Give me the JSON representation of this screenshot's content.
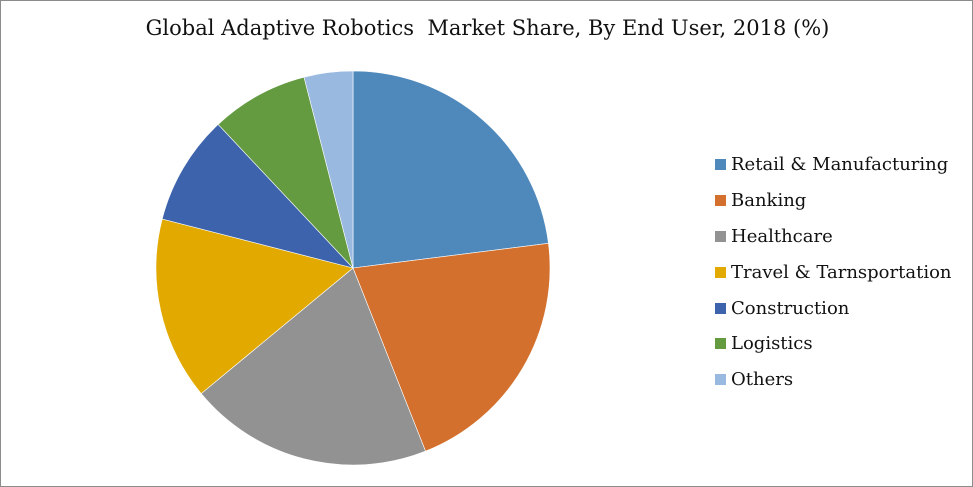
{
  "chart_data": {
    "type": "pie",
    "title": "Global Adaptive Robotics  Market Share, By End User, 2018 (%)",
    "categories": [
      "Retail & Manufacturing",
      "Banking",
      "Healthcare",
      "Travel & Tarnsportation",
      "Construction",
      "Logistics",
      "Others"
    ],
    "values": [
      23,
      21,
      20,
      15,
      9,
      8,
      4
    ],
    "colors": [
      "#4f89bc",
      "#d4702d",
      "#929292",
      "#e2aa00",
      "#3c63ac",
      "#649a40",
      "#99b9e0"
    ],
    "start_angle_deg": 0,
    "direction": "clockwise",
    "legend_position": "right",
    "data_labels": false
  },
  "legend": {
    "items": [
      {
        "label": "Retail & Manufacturing",
        "color": "#4f89bc"
      },
      {
        "label": "Banking",
        "color": "#d4702d"
      },
      {
        "label": "Healthcare",
        "color": "#929292"
      },
      {
        "label": "Travel & Tarnsportation",
        "color": "#e2aa00"
      },
      {
        "label": "Construction",
        "color": "#3c63ac"
      },
      {
        "label": "Logistics",
        "color": "#649a40"
      },
      {
        "label": "Others",
        "color": "#99b9e0"
      }
    ]
  }
}
